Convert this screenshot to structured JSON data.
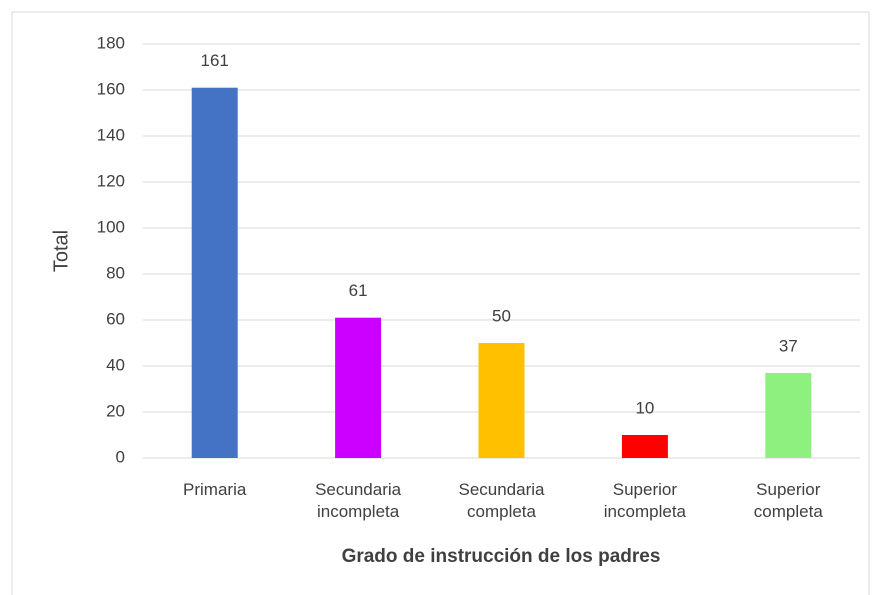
{
  "chart_data": {
    "type": "bar",
    "x_label": "Grado de instrucción de los padres",
    "y_label": "Total",
    "categories": [
      "Primaria",
      "Secundaria incompleta",
      "Secundaria completa",
      "Superior incompleta",
      "Superior completa"
    ],
    "values": [
      161,
      61,
      50,
      10,
      37
    ],
    "colors": [
      "#4472c4",
      "#cc00ff",
      "#ffc000",
      "#ff0000",
      "#8ef07f"
    ],
    "ylim": [
      0,
      180
    ],
    "yticks": [
      0,
      20,
      40,
      60,
      80,
      100,
      120,
      140,
      160,
      180
    ],
    "grid": true
  }
}
